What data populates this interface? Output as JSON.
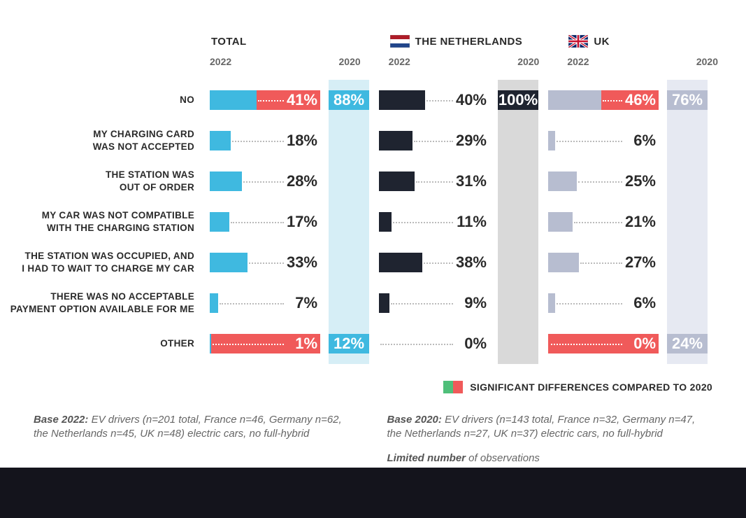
{
  "colors": {
    "total_bar": "#3fb9e0",
    "total_2020_bg": "#d6eef6",
    "nl_bar": "#1f2430",
    "nl_2020_bg": "#d9d9d9",
    "uk_bar": "#b7bdd0",
    "uk_2020_bg": "#e6e9f2",
    "sig_red": "#f05a5a",
    "sig_green": "#4fbf7a",
    "text_dark": "#2a2a2a",
    "text_light": "#ffffff",
    "dots": "#bbbbbb",
    "footer_bg": "#14141c"
  },
  "columns": [
    {
      "key": "total",
      "title": "TOTAL",
      "flag": null,
      "bar_color": "#3fb9e0",
      "bg2020": "#d6eef6",
      "val2020_color": "#3fb9e0"
    },
    {
      "key": "nl",
      "title": "THE NETHERLANDS",
      "flag": "nl",
      "bar_color": "#1f2430",
      "bg2020": "#d9d9d9",
      "val2020_color": "#1f2430"
    },
    {
      "key": "uk",
      "title": "UK",
      "flag": "uk",
      "bar_color": "#b7bdd0",
      "bg2020": "#e6e9f2",
      "val2020_color": "#9aa2bb"
    }
  ],
  "year_left": "2022",
  "year_right": "2020",
  "rows": [
    {
      "label": "NO",
      "cells": {
        "total": {
          "v2022": 41,
          "v2020": 88,
          "sig": "red",
          "label_color_2022": "#ffffff",
          "show_2020_val": true
        },
        "nl": {
          "v2022": 40,
          "v2020": 100,
          "sig": null,
          "label_color_2022": "#2a2a2a",
          "show_2020_val": true
        },
        "uk": {
          "v2022": 46,
          "v2020": 76,
          "sig": "red",
          "label_color_2022": "#ffffff",
          "show_2020_val": true
        }
      }
    },
    {
      "label": "MY CHARGING CARD\nWAS NOT ACCEPTED",
      "cells": {
        "total": {
          "v2022": 18,
          "v2020": null,
          "sig": null,
          "label_color_2022": "#2a2a2a"
        },
        "nl": {
          "v2022": 29,
          "v2020": null,
          "sig": null,
          "label_color_2022": "#2a2a2a"
        },
        "uk": {
          "v2022": 6,
          "v2020": null,
          "sig": null,
          "label_color_2022": "#2a2a2a"
        }
      }
    },
    {
      "label": "THE STATION  WAS\nOUT OF ORDER",
      "cells": {
        "total": {
          "v2022": 28,
          "v2020": null,
          "sig": null,
          "label_color_2022": "#2a2a2a"
        },
        "nl": {
          "v2022": 31,
          "v2020": null,
          "sig": null,
          "label_color_2022": "#2a2a2a"
        },
        "uk": {
          "v2022": 25,
          "v2020": null,
          "sig": null,
          "label_color_2022": "#2a2a2a"
        }
      }
    },
    {
      "label": "MY CAR WAS NOT COMPATIBLE\nWITH THE CHARGING STATION",
      "cells": {
        "total": {
          "v2022": 17,
          "v2020": null,
          "sig": null,
          "label_color_2022": "#2a2a2a"
        },
        "nl": {
          "v2022": 11,
          "v2020": null,
          "sig": null,
          "label_color_2022": "#2a2a2a"
        },
        "uk": {
          "v2022": 21,
          "v2020": null,
          "sig": null,
          "label_color_2022": "#2a2a2a"
        }
      }
    },
    {
      "label": "THE STATION WAS OCCUPIED, AND\nI HAD TO WAIT TO CHARGE MY CAR",
      "cells": {
        "total": {
          "v2022": 33,
          "v2020": null,
          "sig": null,
          "label_color_2022": "#2a2a2a"
        },
        "nl": {
          "v2022": 38,
          "v2020": null,
          "sig": null,
          "label_color_2022": "#2a2a2a"
        },
        "uk": {
          "v2022": 27,
          "v2020": null,
          "sig": null,
          "label_color_2022": "#2a2a2a"
        }
      }
    },
    {
      "label": "THERE WAS NO ACCEPTABLE\nPAYMENT OPTION AVAILABLE FOR ME",
      "cells": {
        "total": {
          "v2022": 7,
          "v2020": null,
          "sig": null,
          "label_color_2022": "#2a2a2a"
        },
        "nl": {
          "v2022": 9,
          "v2020": null,
          "sig": null,
          "label_color_2022": "#2a2a2a"
        },
        "uk": {
          "v2022": 6,
          "v2020": null,
          "sig": null,
          "label_color_2022": "#2a2a2a"
        }
      }
    },
    {
      "label": "OTHER",
      "cells": {
        "total": {
          "v2022": 1,
          "v2020": 12,
          "sig": "red",
          "label_color_2022": "#ffffff",
          "full_back": true,
          "show_2020_val": true
        },
        "nl": {
          "v2022": 0,
          "v2020": null,
          "sig": null,
          "label_color_2022": "#2a2a2a"
        },
        "uk": {
          "v2022": 0,
          "v2020": 24,
          "sig": "red",
          "label_color_2022": "#ffffff",
          "full_back": true,
          "show_2020_val": true
        }
      }
    }
  ],
  "bar_max_pct": 50,
  "legend": {
    "text": "SIGNIFICANT DIFFERENCES COMPARED TO 2020",
    "green": "#4fbf7a",
    "red": "#f05a5a"
  },
  "footnotes": {
    "left_bold": "Base 2022:",
    "left_text": " EV drivers (n=201 total, France n=46, Germany n=62, the Netherlands n=45, UK n=48) electric cars, no full-hybrid",
    "right_bold": "Base 2020:",
    "right_text": " EV drivers (n=143 total, France n=32, Germany n=47, the Netherlands n=27, UK n=37) electric cars, no full-hybrid",
    "right2_bold": "Limited number",
    "right2_text": " of observations"
  },
  "flags": {
    "nl": [
      {
        "fill": "#ae1c28",
        "y": 0,
        "h": 6
      },
      {
        "fill": "#ffffff",
        "y": 6,
        "h": 6
      },
      {
        "fill": "#21468b",
        "y": 12,
        "h": 6
      }
    ]
  }
}
